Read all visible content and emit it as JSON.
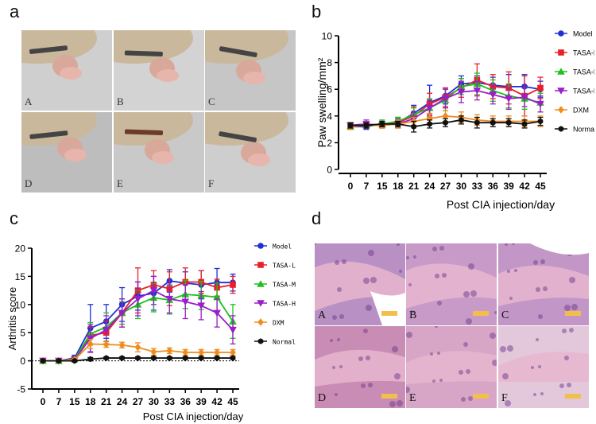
{
  "panels": {
    "a": {
      "label": "a",
      "letters": [
        "A",
        "B",
        "C",
        "D",
        "E",
        "F"
      ]
    },
    "b": {
      "label": "b"
    },
    "c": {
      "label": "c"
    },
    "d": {
      "label": "d",
      "letters": [
        "A",
        "B",
        "C",
        "D",
        "E",
        "F"
      ]
    }
  },
  "chart_data": [
    {
      "id": "b",
      "type": "line",
      "categories": [
        "0",
        "7",
        "15",
        "18",
        "21",
        "24",
        "27",
        "30",
        "33",
        "36",
        "39",
        "42",
        "45"
      ],
      "ylabel": "Paw swelling/mm²",
      "xlabel": "Post CIA injection/day",
      "ylim": [
        0,
        10
      ],
      "yticks": [
        0,
        2,
        4,
        6,
        8,
        10
      ],
      "legend_position": "right",
      "series": [
        {
          "name": "Model",
          "color": "#1f2fd6",
          "marker": "circle",
          "values": [
            3.2,
            3.2,
            3.4,
            3.5,
            4.2,
            5.0,
            5.5,
            6.4,
            6.5,
            6.3,
            6.2,
            6.2,
            6.0
          ],
          "errors": [
            0.2,
            0.2,
            0.2,
            0.3,
            0.6,
            1.3,
            0.6,
            0.6,
            0.5,
            0.6,
            0.9,
            0.9,
            0.6
          ]
        },
        {
          "name": "TASA-L",
          "color": "#e8202a",
          "marker": "square",
          "values": [
            3.3,
            3.3,
            3.3,
            3.5,
            4.0,
            4.9,
            5.4,
            6.1,
            6.7,
            6.2,
            6.1,
            5.5,
            6.1
          ],
          "errors": [
            0.2,
            0.2,
            0.2,
            0.4,
            0.7,
            0.8,
            0.7,
            0.7,
            1.2,
            0.9,
            1.2,
            1.5,
            0.8
          ]
        },
        {
          "name": "TASA-M",
          "color": "#1ec01e",
          "marker": "triangle-up",
          "values": [
            3.2,
            3.3,
            3.4,
            3.6,
            4.1,
            4.6,
            5.2,
            6.2,
            6.4,
            5.9,
            5.5,
            5.3,
            5.0
          ],
          "errors": [
            0.2,
            0.2,
            0.3,
            0.3,
            0.5,
            0.7,
            0.8,
            0.6,
            0.8,
            0.8,
            0.9,
            0.8,
            0.7
          ]
        },
        {
          "name": "TASA-H",
          "color": "#9a1ec8",
          "marker": "triangle-down",
          "values": [
            3.3,
            3.4,
            3.3,
            3.4,
            3.8,
            4.6,
            5.3,
            5.8,
            5.9,
            5.6,
            5.3,
            5.4,
            4.9
          ],
          "errors": [
            0.2,
            0.3,
            0.2,
            0.3,
            0.5,
            0.6,
            0.7,
            0.8,
            0.7,
            0.7,
            0.8,
            0.7,
            0.6
          ]
        },
        {
          "name": "DXM",
          "color": "#f08c1e",
          "marker": "diamond",
          "values": [
            3.2,
            3.3,
            3.3,
            3.4,
            3.6,
            3.8,
            4.0,
            3.9,
            3.7,
            3.6,
            3.6,
            3.6,
            3.6
          ],
          "errors": [
            0.2,
            0.2,
            0.2,
            0.3,
            0.3,
            0.4,
            0.4,
            0.4,
            0.4,
            0.4,
            0.4,
            0.4,
            0.4
          ]
        },
        {
          "name": "Normal",
          "color": "#111111",
          "marker": "hexagon",
          "values": [
            3.3,
            3.3,
            3.4,
            3.4,
            3.2,
            3.4,
            3.5,
            3.7,
            3.5,
            3.5,
            3.5,
            3.4,
            3.6
          ],
          "errors": [
            0.2,
            0.2,
            0.2,
            0.2,
            0.4,
            0.3,
            0.3,
            0.3,
            0.4,
            0.3,
            0.3,
            0.3,
            0.3
          ]
        }
      ]
    },
    {
      "id": "c",
      "type": "line",
      "categories": [
        "0",
        "7",
        "15",
        "18",
        "21",
        "24",
        "27",
        "30",
        "33",
        "36",
        "39",
        "42",
        "45"
      ],
      "ylabel": "Arthritis score",
      "xlabel": "Post CIA injection/day",
      "ylim": [
        -5,
        20
      ],
      "yticks": [
        -5,
        0,
        5,
        10,
        15,
        20
      ],
      "legend_position": "right",
      "series": [
        {
          "name": "Model",
          "color": "#1f2fd6",
          "marker": "circle",
          "values": [
            0,
            0,
            0.5,
            5.8,
            7.0,
            10.0,
            11.5,
            12.0,
            14.2,
            13.8,
            13.5,
            13.9,
            13.9
          ],
          "errors": [
            0,
            0,
            0.5,
            4.2,
            3.0,
            3.0,
            2.5,
            3.0,
            2.0,
            2.0,
            2.5,
            2.5,
            1.5
          ]
        },
        {
          "name": "TASA-L",
          "color": "#e8202a",
          "marker": "square",
          "values": [
            0,
            0,
            0.3,
            4.5,
            5.0,
            8.5,
            12.5,
            13.5,
            12.8,
            14.0,
            14.0,
            13.0,
            13.5
          ],
          "errors": [
            0,
            0,
            0.4,
            1.5,
            2.0,
            2.5,
            4.0,
            2.5,
            3.0,
            2.5,
            2.0,
            1.5,
            1.5
          ]
        },
        {
          "name": "TASA-M",
          "color": "#1ec01e",
          "marker": "triangle-up",
          "values": [
            0,
            0,
            0.3,
            4.8,
            6.0,
            8.5,
            10.0,
            11.2,
            10.8,
            11.8,
            11.6,
            11.3,
            7.0
          ],
          "errors": [
            0,
            0,
            0.3,
            2.0,
            2.5,
            2.0,
            2.5,
            2.5,
            2.5,
            2.5,
            2.5,
            2.5,
            3.0
          ]
        },
        {
          "name": "TASA-H",
          "color": "#9a1ec8",
          "marker": "triangle-down",
          "values": [
            0,
            0,
            0.2,
            4.0,
            5.5,
            8.5,
            11.0,
            12.5,
            11.0,
            10.5,
            9.8,
            8.5,
            5.5
          ],
          "errors": [
            0,
            0,
            0.3,
            2.5,
            2.5,
            2.5,
            3.0,
            2.5,
            2.5,
            3.0,
            2.5,
            2.5,
            2.5
          ]
        },
        {
          "name": "DXM",
          "color": "#f08c1e",
          "marker": "diamond",
          "values": [
            0,
            0,
            0.2,
            3.0,
            2.9,
            2.8,
            2.4,
            1.6,
            1.8,
            1.5,
            1.5,
            1.5,
            1.5
          ],
          "errors": [
            0,
            0,
            0.2,
            0.8,
            0.5,
            0.5,
            0.8,
            0.6,
            0.5,
            0.5,
            0.5,
            0.5,
            0.5
          ]
        },
        {
          "name": "Normal",
          "color": "#111111",
          "marker": "hexagon",
          "values": [
            0,
            0,
            0,
            0.3,
            0.5,
            0.5,
            0.5,
            0.5,
            0.5,
            0.5,
            0.5,
            0.5,
            0.5
          ],
          "errors": [
            0,
            0,
            0,
            0.3,
            0.2,
            0.2,
            0.2,
            0.2,
            0.2,
            0.2,
            0.2,
            0.2,
            0.2
          ]
        }
      ]
    }
  ]
}
